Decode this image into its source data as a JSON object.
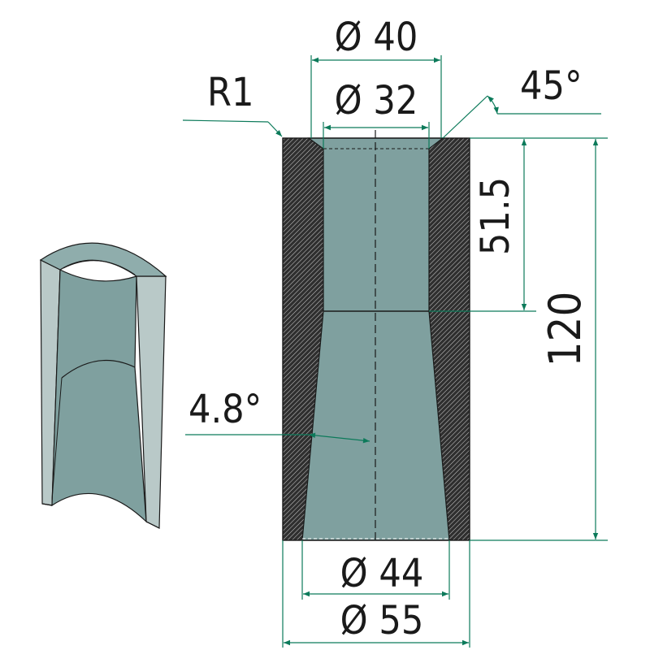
{
  "labels": {
    "d_outer_top": "Ø 40",
    "d_inner_top": "Ø 32",
    "radius": "R1",
    "chamfer_angle": "45°",
    "top_depth": "51.5",
    "total_height": "120",
    "taper_angle": "4.8°",
    "d_inner_bottom": "Ø 44",
    "d_outer_bottom": "Ø 55"
  },
  "colors": {
    "body_fill": "#7fa09f",
    "hatch_dark": "#2f2f2f",
    "hatch_light": "#d0d0d0",
    "dim_line": "#0c7a5a",
    "iso_side": "#b9c9c8",
    "outline": "#1a1a1a"
  }
}
